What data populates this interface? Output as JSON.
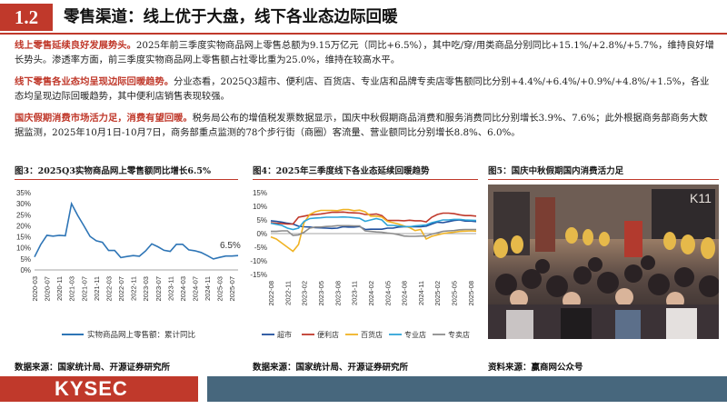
{
  "header": {
    "section_number": "1.2",
    "title": "零售渠道：线上优于大盘，线下各业态边际回暖"
  },
  "paragraphs": [
    {
      "highlight": "线上零售延续良好发展势头。",
      "text": "2025年前三季度实物商品网上零售总额为9.15万亿元（同比+6.5%），其中吃/穿/用类商品分别同比+15.1%/+2.8%/+5.7%，维持良好增长势头。渗透率方面，前三季度实物商品网上零售额占社零比重为25.0%，维持在较高水平。"
    },
    {
      "highlight": "线下零售各业态均呈现边际回暖趋势。",
      "text": "分业态看，2025Q3超市、便利店、百货店、专业店和品牌专卖店零售额同比分别+4.4%/+6.4%/+0.9%/+4.8%/+1.5%，各业态均呈现边际回暖趋势，其中便利店销售表现较强。"
    },
    {
      "highlight": "国庆假期消费市场活力足，消费有望回暖。",
      "text": "税务局公布的增值税发票数据显示，国庆中秋假期商品消费和服务消费同比分别增长3.9%、7.6%；此外根据商务部商务大数据监测，2025年10月1日-10月7日，商务部重点监测的78个步行街（商圈）客流量、营业额同比分别增长8.8%、6.0%。"
    }
  ],
  "figures": [
    {
      "title": "图3：2025Q3实物商品网上零售额同比增长6.5%",
      "source": "数据来源：国家统计局、开源证券研究所"
    },
    {
      "title": "图4：2025年三季度线下各业态延续回暖趋势",
      "source": "数据来源：国家统计局、开源证券研究所"
    },
    {
      "title": "图5：国庆中秋假期国内消费活力足",
      "source": "资料来源：赢商网公众号"
    }
  ],
  "photo": {
    "description_icon": "crowd-photo",
    "watermark": "K11"
  },
  "footer": {
    "logo": "KYSEC",
    "brand_color": "#c0392b",
    "bar_color": "#47677d"
  },
  "chart_data": [
    {
      "type": "line",
      "title": "图3：2025Q3实物商品网上零售额同比增长6.5%",
      "x": [
        "2020-03",
        "2020-05",
        "2020-07",
        "2020-09",
        "2020-11",
        "2021-01",
        "2021-03",
        "2021-05",
        "2021-07",
        "2021-09",
        "2021-11",
        "2022-01",
        "2022-03",
        "2022-05",
        "2022-07",
        "2022-09",
        "2022-11",
        "2023-01",
        "2023-03",
        "2023-05",
        "2023-07",
        "2023-09",
        "2023-11",
        "2024-01",
        "2024-03",
        "2024-05",
        "2024-07",
        "2024-09",
        "2024-11",
        "2025-01",
        "2025-03",
        "2025-05",
        "2025-07",
        "2025-09"
      ],
      "x_ticks": [
        "2020-03",
        "2020-07",
        "2020-11",
        "2021-03",
        "2021-07",
        "2021-11",
        "2022-03",
        "2022-07",
        "2022-11",
        "2023-03",
        "2023-07",
        "2023-11",
        "2024-03",
        "2024-07",
        "2024-11",
        "2025-03",
        "2025-07"
      ],
      "series": [
        {
          "name": "实物商品网上零售额：累计同比",
          "color": "#2e75b6",
          "values": [
            5.9,
            11.5,
            15.7,
            15.3,
            15.7,
            15.5,
            30.0,
            24.7,
            20.0,
            15.2,
            13.2,
            12.5,
            8.8,
            8.8,
            5.6,
            6.1,
            6.5,
            6.2,
            8.6,
            11.8,
            10.5,
            8.9,
            8.4,
            11.6,
            11.6,
            9.1,
            8.7,
            7.9,
            6.5,
            5.0,
            5.7,
            6.3,
            6.3,
            6.5
          ]
        }
      ],
      "ylim": [
        0,
        35
      ],
      "yticks": [
        "0%",
        "5%",
        "10%",
        "15%",
        "20%",
        "25%",
        "30%",
        "35%"
      ],
      "annotation": "6.5%",
      "legend": "bottom"
    },
    {
      "type": "line",
      "title": "图4：2025年三季度线下各业态延续回暖趋势",
      "x": [
        "2022-08",
        "2022-09",
        "2022-10",
        "2022-11",
        "2022-12",
        "2023-01",
        "2023-02",
        "2023-03",
        "2023-04",
        "2023-05",
        "2023-06",
        "2023-07",
        "2023-08",
        "2023-09",
        "2023-10",
        "2023-11",
        "2023-12",
        "2024-01",
        "2024-02",
        "2024-03",
        "2024-04",
        "2024-05",
        "2024-06",
        "2024-07",
        "2024-08",
        "2024-09",
        "2024-10",
        "2024-11",
        "2024-12",
        "2025-01",
        "2025-02",
        "2025-03",
        "2025-04",
        "2025-05",
        "2025-06",
        "2025-07",
        "2025-08",
        "2025-09"
      ],
      "x_ticks": [
        "2022-08",
        "2022-11",
        "2023-02",
        "2023-05",
        "2023-08",
        "2023-11",
        "2024-02",
        "2024-05",
        "2024-08",
        "2024-11",
        "2025-02",
        "2025-05",
        "2025-08"
      ],
      "series": [
        {
          "name": "超市",
          "color": "#1f4e9c",
          "values": [
            4.7,
            4.5,
            4.2,
            3.8,
            3.5,
            2.7,
            2.5,
            2.4,
            2.2,
            2.1,
            2.0,
            1.9,
            2.0,
            2.5,
            2.4,
            2.4,
            2.6,
            1.5,
            1.6,
            1.6,
            1.6,
            2.0,
            2.0,
            2.4,
            2.5,
            2.5,
            2.5,
            2.5,
            2.7,
            3.5,
            4.2,
            4.0,
            4.4,
            4.8,
            5.0,
            4.6,
            4.6,
            4.4
          ]
        },
        {
          "name": "便利店",
          "color": "#c0392b",
          "values": [
            4.0,
            3.8,
            3.7,
            3.5,
            3.5,
            6.0,
            6.4,
            6.8,
            7.0,
            7.2,
            7.5,
            7.8,
            7.8,
            7.9,
            7.7,
            7.6,
            7.5,
            7.0,
            7.0,
            7.2,
            6.6,
            4.8,
            4.8,
            4.8,
            4.7,
            4.9,
            4.7,
            4.7,
            4.3,
            6.0,
            7.0,
            7.5,
            7.5,
            7.3,
            6.9,
            6.6,
            6.6,
            6.4
          ]
        },
        {
          "name": "百货店",
          "color": "#f0b323",
          "values": [
            -1.2,
            -2.0,
            -3.5,
            -5.0,
            -6.5,
            -4.0,
            4.0,
            7.0,
            8.0,
            8.5,
            8.5,
            8.5,
            8.4,
            8.8,
            8.8,
            8.4,
            8.6,
            8.0,
            6.4,
            6.4,
            6.1,
            4.5,
            4.0,
            3.5,
            2.8,
            2.2,
            1.1,
            1.5,
            -2.0,
            -1.0,
            -0.5,
            0.0,
            0.3,
            0.5,
            0.8,
            0.9,
            1.0,
            0.9
          ]
        },
        {
          "name": "专业店",
          "color": "#2fa4d8",
          "values": [
            3.8,
            3.4,
            3.0,
            2.0,
            1.5,
            2.0,
            4.5,
            5.5,
            5.7,
            5.8,
            6.0,
            6.0,
            6.0,
            6.1,
            6.0,
            5.8,
            5.6,
            4.5,
            5.0,
            5.5,
            5.0,
            3.0,
            3.0,
            2.8,
            2.6,
            2.5,
            2.8,
            3.0,
            3.2,
            4.0,
            4.5,
            5.0,
            5.0,
            5.2,
            5.2,
            5.0,
            4.9,
            4.8
          ]
        },
        {
          "name": "专卖店",
          "color": "#8c8c8c",
          "values": [
            0.8,
            0.8,
            1.0,
            1.0,
            -0.7,
            -0.5,
            0.5,
            2.0,
            2.4,
            2.4,
            2.6,
            2.7,
            2.9,
            2.9,
            2.9,
            2.8,
            2.8,
            1.0,
            0.8,
            0.6,
            0.5,
            0.2,
            0.0,
            -0.4,
            -0.9,
            -1.0,
            -1.0,
            -0.9,
            -0.9,
            -0.2,
            0.3,
            0.8,
            1.0,
            1.1,
            1.4,
            1.5,
            1.5,
            1.5
          ]
        }
      ],
      "ylim": [
        -15,
        15
      ],
      "yticks": [
        "-15%",
        "-10%",
        "-5%",
        "0%",
        "5%",
        "10%",
        "15%"
      ],
      "legend": "bottom"
    }
  ]
}
